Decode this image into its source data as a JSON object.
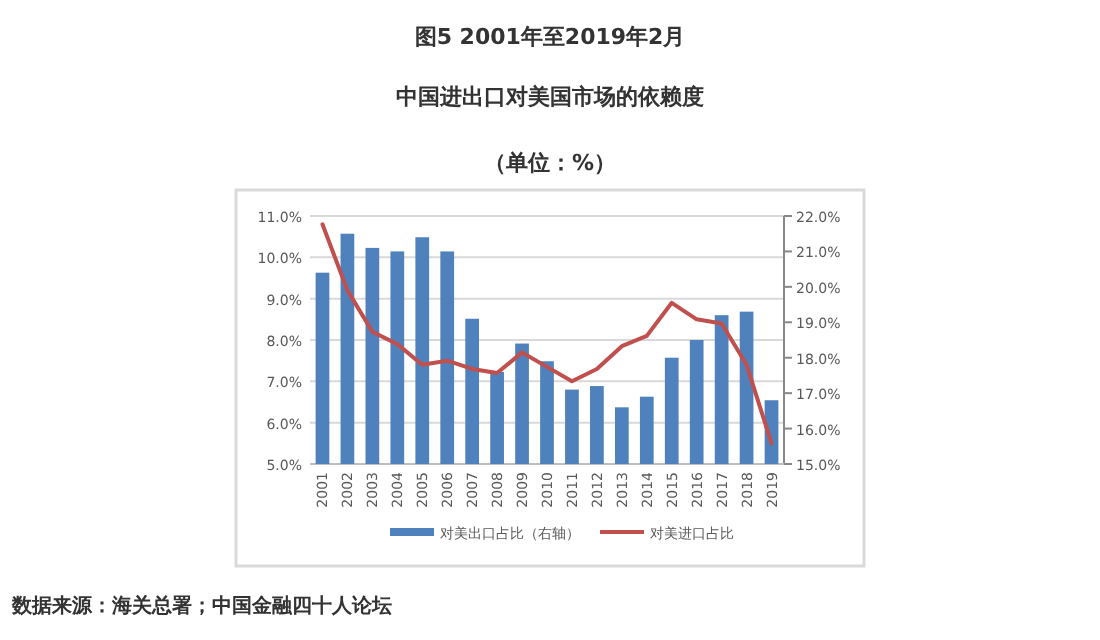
{
  "chart_data": {
    "type": "bar",
    "title": "图5  2001年至2019年2月",
    "subtitle": "中国进出口对美国市场的依赖度",
    "annotations": [
      "（单位：%）",
      "数据来源：海关总署；中国金融四十人论坛"
    ],
    "categories": [
      "2001",
      "2002",
      "2003",
      "2004",
      "2005",
      "2006",
      "2007",
      "2008",
      "2009",
      "2010",
      "2011",
      "2012",
      "2013",
      "2014",
      "2015",
      "2016",
      "2017",
      "2018",
      "2019"
    ],
    "series": [
      {
        "name": "对美出口占比（右轴）",
        "axis": "y2",
        "color": "#4f81bd",
        "values": [
          20.4,
          21.5,
          21.1,
          21.0,
          21.4,
          21.0,
          19.1,
          17.6,
          18.4,
          17.9,
          17.1,
          17.2,
          16.6,
          16.9,
          18.0,
          18.5,
          19.2,
          19.3,
          16.8
        ]
      },
      {
        "name": "对美进口占比",
        "type": "line",
        "axis": "y",
        "color": "#c0504d",
        "line_style": "solid",
        "values": [
          10.8,
          9.2,
          8.2,
          7.9,
          7.4,
          7.5,
          7.3,
          7.2,
          7.7,
          7.35,
          7.0,
          7.3,
          7.85,
          8.1,
          8.9,
          8.5,
          8.4,
          7.4,
          5.5
        ]
      }
    ],
    "ylim": [
      5,
      11
    ],
    "yticks": [
      {
        "value": 5,
        "label": "5.0%"
      },
      {
        "value": 6,
        "label": "6.0%"
      },
      {
        "value": 7,
        "label": "7.0%"
      },
      {
        "value": 8,
        "label": "8.0%"
      },
      {
        "value": 9,
        "label": "9.0%"
      },
      {
        "value": 10,
        "label": "10.0%"
      },
      {
        "value": 11,
        "label": "11.0%"
      }
    ],
    "y2lim": [
      15,
      22
    ],
    "y2ticks": [
      {
        "value": 15,
        "label": "15.0%"
      },
      {
        "value": 16,
        "label": "16.0%"
      },
      {
        "value": 17,
        "label": "17.0%"
      },
      {
        "value": 18,
        "label": "18.0%"
      },
      {
        "value": 19,
        "label": "19.0%"
      },
      {
        "value": 20,
        "label": "20.0%"
      },
      {
        "value": 21,
        "label": "21.0%"
      },
      {
        "value": 22,
        "label": "22.0%"
      }
    ],
    "grid": "y",
    "legend": "bottom",
    "marker": "none"
  }
}
